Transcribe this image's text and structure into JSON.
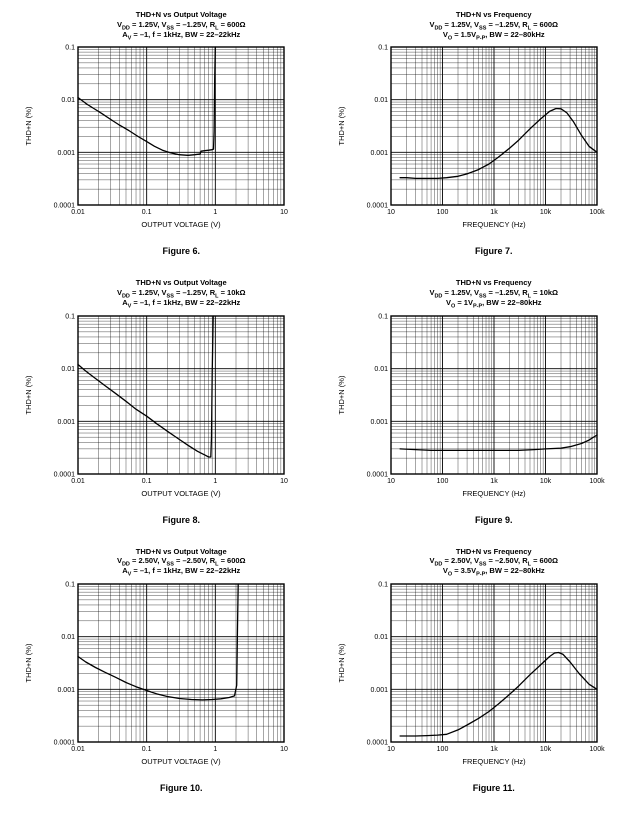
{
  "chart_data": [
    {
      "type": "line",
      "caption": "Figure 6.",
      "title": "THD+N vs Output Voltage",
      "conditions": [
        "V~DD~ = 1.25V, V~SS~ = –1.25V, R~L~ = 600Ω",
        "A~V~ = –1, f = 1kHz, BW = 22–22kHz"
      ],
      "xlabel": "OUTPUT VOLTAGE (V)",
      "ylabel": "THD+N (%)",
      "xscale": "log",
      "yscale": "log",
      "xlim": [
        0.01,
        10
      ],
      "ylim": [
        0.0001,
        0.1
      ],
      "grid": "log major+minor",
      "legend": "none",
      "xticks": [
        {
          "v": 0.01,
          "label": "0.01"
        },
        {
          "v": 0.1,
          "label": "0.1"
        },
        {
          "v": 1,
          "label": "1"
        },
        {
          "v": 10,
          "label": "10"
        }
      ],
      "yticks": [
        {
          "v": 0.1,
          "label": "0.1"
        },
        {
          "v": 0.01,
          "label": "0.01"
        },
        {
          "v": 0.001,
          "label": "0.001"
        },
        {
          "v": 0.0001,
          "label": "0.0001"
        }
      ],
      "series": [
        {
          "name": "THD+N",
          "x": [
            0.01,
            0.013,
            0.017,
            0.022,
            0.03,
            0.04,
            0.055,
            0.075,
            0.1,
            0.13,
            0.17,
            0.22,
            0.3,
            0.4,
            0.5,
            0.6,
            0.62,
            0.7,
            0.8,
            0.9,
            0.94,
            0.96,
            0.98,
            1.0
          ],
          "y": [
            0.011,
            0.0085,
            0.0068,
            0.0055,
            0.0042,
            0.0033,
            0.0026,
            0.002,
            0.0016,
            0.0013,
            0.0011,
            0.00098,
            0.0009,
            0.00088,
            0.0009,
            0.00093,
            0.00105,
            0.00108,
            0.0011,
            0.00112,
            0.00115,
            0.0025,
            0.025,
            0.1
          ]
        }
      ]
    },
    {
      "type": "line",
      "caption": "Figure 7.",
      "title": "THD+N vs Frequency",
      "conditions": [
        "V~DD~ = 1.25V, V~SS~ = –1.25V, R~L~ = 600Ω",
        "V~O~ = 1.5V~P-P~, BW = 22–80kHz"
      ],
      "xlabel": "FREQUENCY (Hz)",
      "ylabel": "THD+N (%)",
      "xscale": "log",
      "yscale": "log",
      "xlim": [
        10,
        100000
      ],
      "ylim": [
        0.0001,
        0.1
      ],
      "grid": "log major+minor",
      "legend": "none",
      "xticks": [
        {
          "v": 10,
          "label": "10"
        },
        {
          "v": 100,
          "label": "100"
        },
        {
          "v": 1000,
          "label": "1k"
        },
        {
          "v": 10000,
          "label": "10k"
        },
        {
          "v": 100000,
          "label": "100k"
        }
      ],
      "yticks": [
        {
          "v": 0.1,
          "label": "0.1"
        },
        {
          "v": 0.01,
          "label": "0.01"
        },
        {
          "v": 0.001,
          "label": "0.001"
        },
        {
          "v": 0.0001,
          "label": "0.0001"
        }
      ],
      "series": [
        {
          "name": "THD+N",
          "x": [
            15,
            20,
            30,
            50,
            80,
            120,
            200,
            300,
            500,
            800,
            1200,
            2000,
            3000,
            5000,
            8000,
            12000,
            16000,
            20000,
            26000,
            35000,
            50000,
            70000,
            100000
          ],
          "y": [
            0.00033,
            0.00033,
            0.00032,
            0.00032,
            0.00032,
            0.00033,
            0.00035,
            0.00039,
            0.00047,
            0.0006,
            0.0008,
            0.0012,
            0.0017,
            0.0028,
            0.0043,
            0.006,
            0.0068,
            0.0067,
            0.0056,
            0.0038,
            0.0021,
            0.0013,
            0.001
          ]
        }
      ]
    },
    {
      "type": "line",
      "caption": "Figure 8.",
      "title": "THD+N vs Output Voltage",
      "conditions": [
        "V~DD~ = 1.25V, V~SS~ = –1.25V, R~L~ = 10kΩ",
        "A~V~ = –1, f = 1kHz, BW = 22–22kHz"
      ],
      "xlabel": "OUTPUT VOLTAGE (V)",
      "ylabel": "THD+N (%)",
      "xscale": "log",
      "yscale": "log",
      "xlim": [
        0.01,
        10
      ],
      "ylim": [
        0.0001,
        0.1
      ],
      "grid": "log major+minor",
      "legend": "none",
      "xticks": [
        {
          "v": 0.01,
          "label": "0.01"
        },
        {
          "v": 0.1,
          "label": "0.1"
        },
        {
          "v": 1,
          "label": "1"
        },
        {
          "v": 10,
          "label": "10"
        }
      ],
      "yticks": [
        {
          "v": 0.1,
          "label": "0.1"
        },
        {
          "v": 0.01,
          "label": "0.01"
        },
        {
          "v": 0.001,
          "label": "0.001"
        },
        {
          "v": 0.0001,
          "label": "0.0001"
        }
      ],
      "series": [
        {
          "name": "THD+N",
          "x": [
            0.01,
            0.013,
            0.018,
            0.025,
            0.035,
            0.05,
            0.07,
            0.1,
            0.14,
            0.2,
            0.28,
            0.4,
            0.55,
            0.7,
            0.8,
            0.86,
            0.88,
            0.9,
            0.93
          ],
          "y": [
            0.012,
            0.009,
            0.0065,
            0.0047,
            0.0034,
            0.0024,
            0.0017,
            0.00125,
            0.0009,
            0.00065,
            0.00048,
            0.00035,
            0.00027,
            0.00023,
            0.00021,
            0.00021,
            0.0005,
            0.008,
            0.1
          ]
        }
      ]
    },
    {
      "type": "line",
      "caption": "Figure 9.",
      "title": "THD+N vs Frequency",
      "conditions": [
        "V~DD~ = 1.25V, V~SS~ = –1.25V, R~L~ = 10kΩ",
        "V~O~ = 1V~P-P~, BW = 22–80kHz"
      ],
      "xlabel": "FREQUENCY (Hz)",
      "ylabel": "THD+N (%)",
      "xscale": "log",
      "yscale": "log",
      "xlim": [
        10,
        100000
      ],
      "ylim": [
        0.0001,
        0.1
      ],
      "grid": "log major+minor",
      "legend": "none",
      "xticks": [
        {
          "v": 10,
          "label": "10"
        },
        {
          "v": 100,
          "label": "100"
        },
        {
          "v": 1000,
          "label": "1k"
        },
        {
          "v": 10000,
          "label": "10k"
        },
        {
          "v": 100000,
          "label": "100k"
        }
      ],
      "yticks": [
        {
          "v": 0.1,
          "label": "0.1"
        },
        {
          "v": 0.01,
          "label": "0.01"
        },
        {
          "v": 0.001,
          "label": "0.001"
        },
        {
          "v": 0.0001,
          "label": "0.0001"
        }
      ],
      "series": [
        {
          "name": "THD+N",
          "x": [
            15,
            30,
            60,
            100,
            200,
            400,
            800,
            1500,
            3000,
            6000,
            10000,
            20000,
            30000,
            50000,
            70000,
            100000
          ],
          "y": [
            0.0003,
            0.00029,
            0.00028,
            0.00028,
            0.00028,
            0.00028,
            0.00028,
            0.00028,
            0.00028,
            0.00029,
            0.0003,
            0.00031,
            0.00033,
            0.00038,
            0.00044,
            0.00055
          ]
        }
      ]
    },
    {
      "type": "line",
      "caption": "Figure 10.",
      "title": "THD+N vs Output Voltage",
      "conditions": [
        "V~DD~ = 2.50V, V~SS~ = –2.50V, R~L~ = 600Ω",
        "A~V~ = –1, f = 1kHz, BW = 22–22kHz"
      ],
      "xlabel": "OUTPUT VOLTAGE (V)",
      "ylabel": "THD+N (%)",
      "xscale": "log",
      "yscale": "log",
      "xlim": [
        0.01,
        10
      ],
      "ylim": [
        0.0001,
        0.1
      ],
      "grid": "log major+minor",
      "legend": "none",
      "xticks": [
        {
          "v": 0.01,
          "label": "0.01"
        },
        {
          "v": 0.1,
          "label": "0.1"
        },
        {
          "v": 1,
          "label": "1"
        },
        {
          "v": 10,
          "label": "10"
        }
      ],
      "yticks": [
        {
          "v": 0.1,
          "label": "0.1"
        },
        {
          "v": 0.01,
          "label": "0.01"
        },
        {
          "v": 0.001,
          "label": "0.001"
        },
        {
          "v": 0.0001,
          "label": "0.0001"
        }
      ],
      "series": [
        {
          "name": "THD+N",
          "x": [
            0.01,
            0.013,
            0.018,
            0.025,
            0.035,
            0.05,
            0.07,
            0.1,
            0.14,
            0.2,
            0.3,
            0.45,
            0.65,
            0.9,
            1.2,
            1.6,
            1.9,
            2.05,
            2.1,
            2.15
          ],
          "y": [
            0.0042,
            0.0033,
            0.0026,
            0.0021,
            0.0017,
            0.00135,
            0.00112,
            0.00095,
            0.00082,
            0.00073,
            0.00067,
            0.00064,
            0.00063,
            0.00064,
            0.00066,
            0.0007,
            0.00075,
            0.0012,
            0.015,
            0.1
          ]
        }
      ]
    },
    {
      "type": "line",
      "caption": "Figure 11.",
      "title": "THD+N vs Frequency",
      "conditions": [
        "V~DD~ = 2.50V, V~SS~ = –2.50V, R~L~ = 600Ω",
        "V~O~ = 3.5V~P-P~, BW = 22–80kHz"
      ],
      "xlabel": "FREQUENCY (Hz)",
      "ylabel": "THD+N (%)",
      "xscale": "log",
      "yscale": "log",
      "xlim": [
        10,
        100000
      ],
      "ylim": [
        0.0001,
        0.1
      ],
      "grid": "log major+minor",
      "legend": "none",
      "xticks": [
        {
          "v": 10,
          "label": "10"
        },
        {
          "v": 100,
          "label": "100"
        },
        {
          "v": 1000,
          "label": "1k"
        },
        {
          "v": 10000,
          "label": "10k"
        },
        {
          "v": 100000,
          "label": "100k"
        }
      ],
      "yticks": [
        {
          "v": 0.1,
          "label": "0.1"
        },
        {
          "v": 0.01,
          "label": "0.01"
        },
        {
          "v": 0.001,
          "label": "0.001"
        },
        {
          "v": 0.0001,
          "label": "0.0001"
        }
      ],
      "series": [
        {
          "name": "THD+N",
          "x": [
            15,
            20,
            30,
            50,
            80,
            120,
            200,
            300,
            500,
            800,
            1200,
            2000,
            3000,
            5000,
            8000,
            12000,
            15000,
            18000,
            22000,
            30000,
            45000,
            70000,
            100000
          ],
          "y": [
            0.00013,
            0.00013,
            0.00013,
            0.000132,
            0.000135,
            0.00014,
            0.00017,
            0.00021,
            0.00028,
            0.00038,
            0.00052,
            0.0008,
            0.00115,
            0.0019,
            0.0029,
            0.0042,
            0.0049,
            0.005,
            0.0046,
            0.0033,
            0.002,
            0.00125,
            0.001
          ]
        }
      ]
    }
  ],
  "style": {
    "curve_color": "#000000",
    "grid_color": "#000000",
    "background": "#ffffff"
  }
}
